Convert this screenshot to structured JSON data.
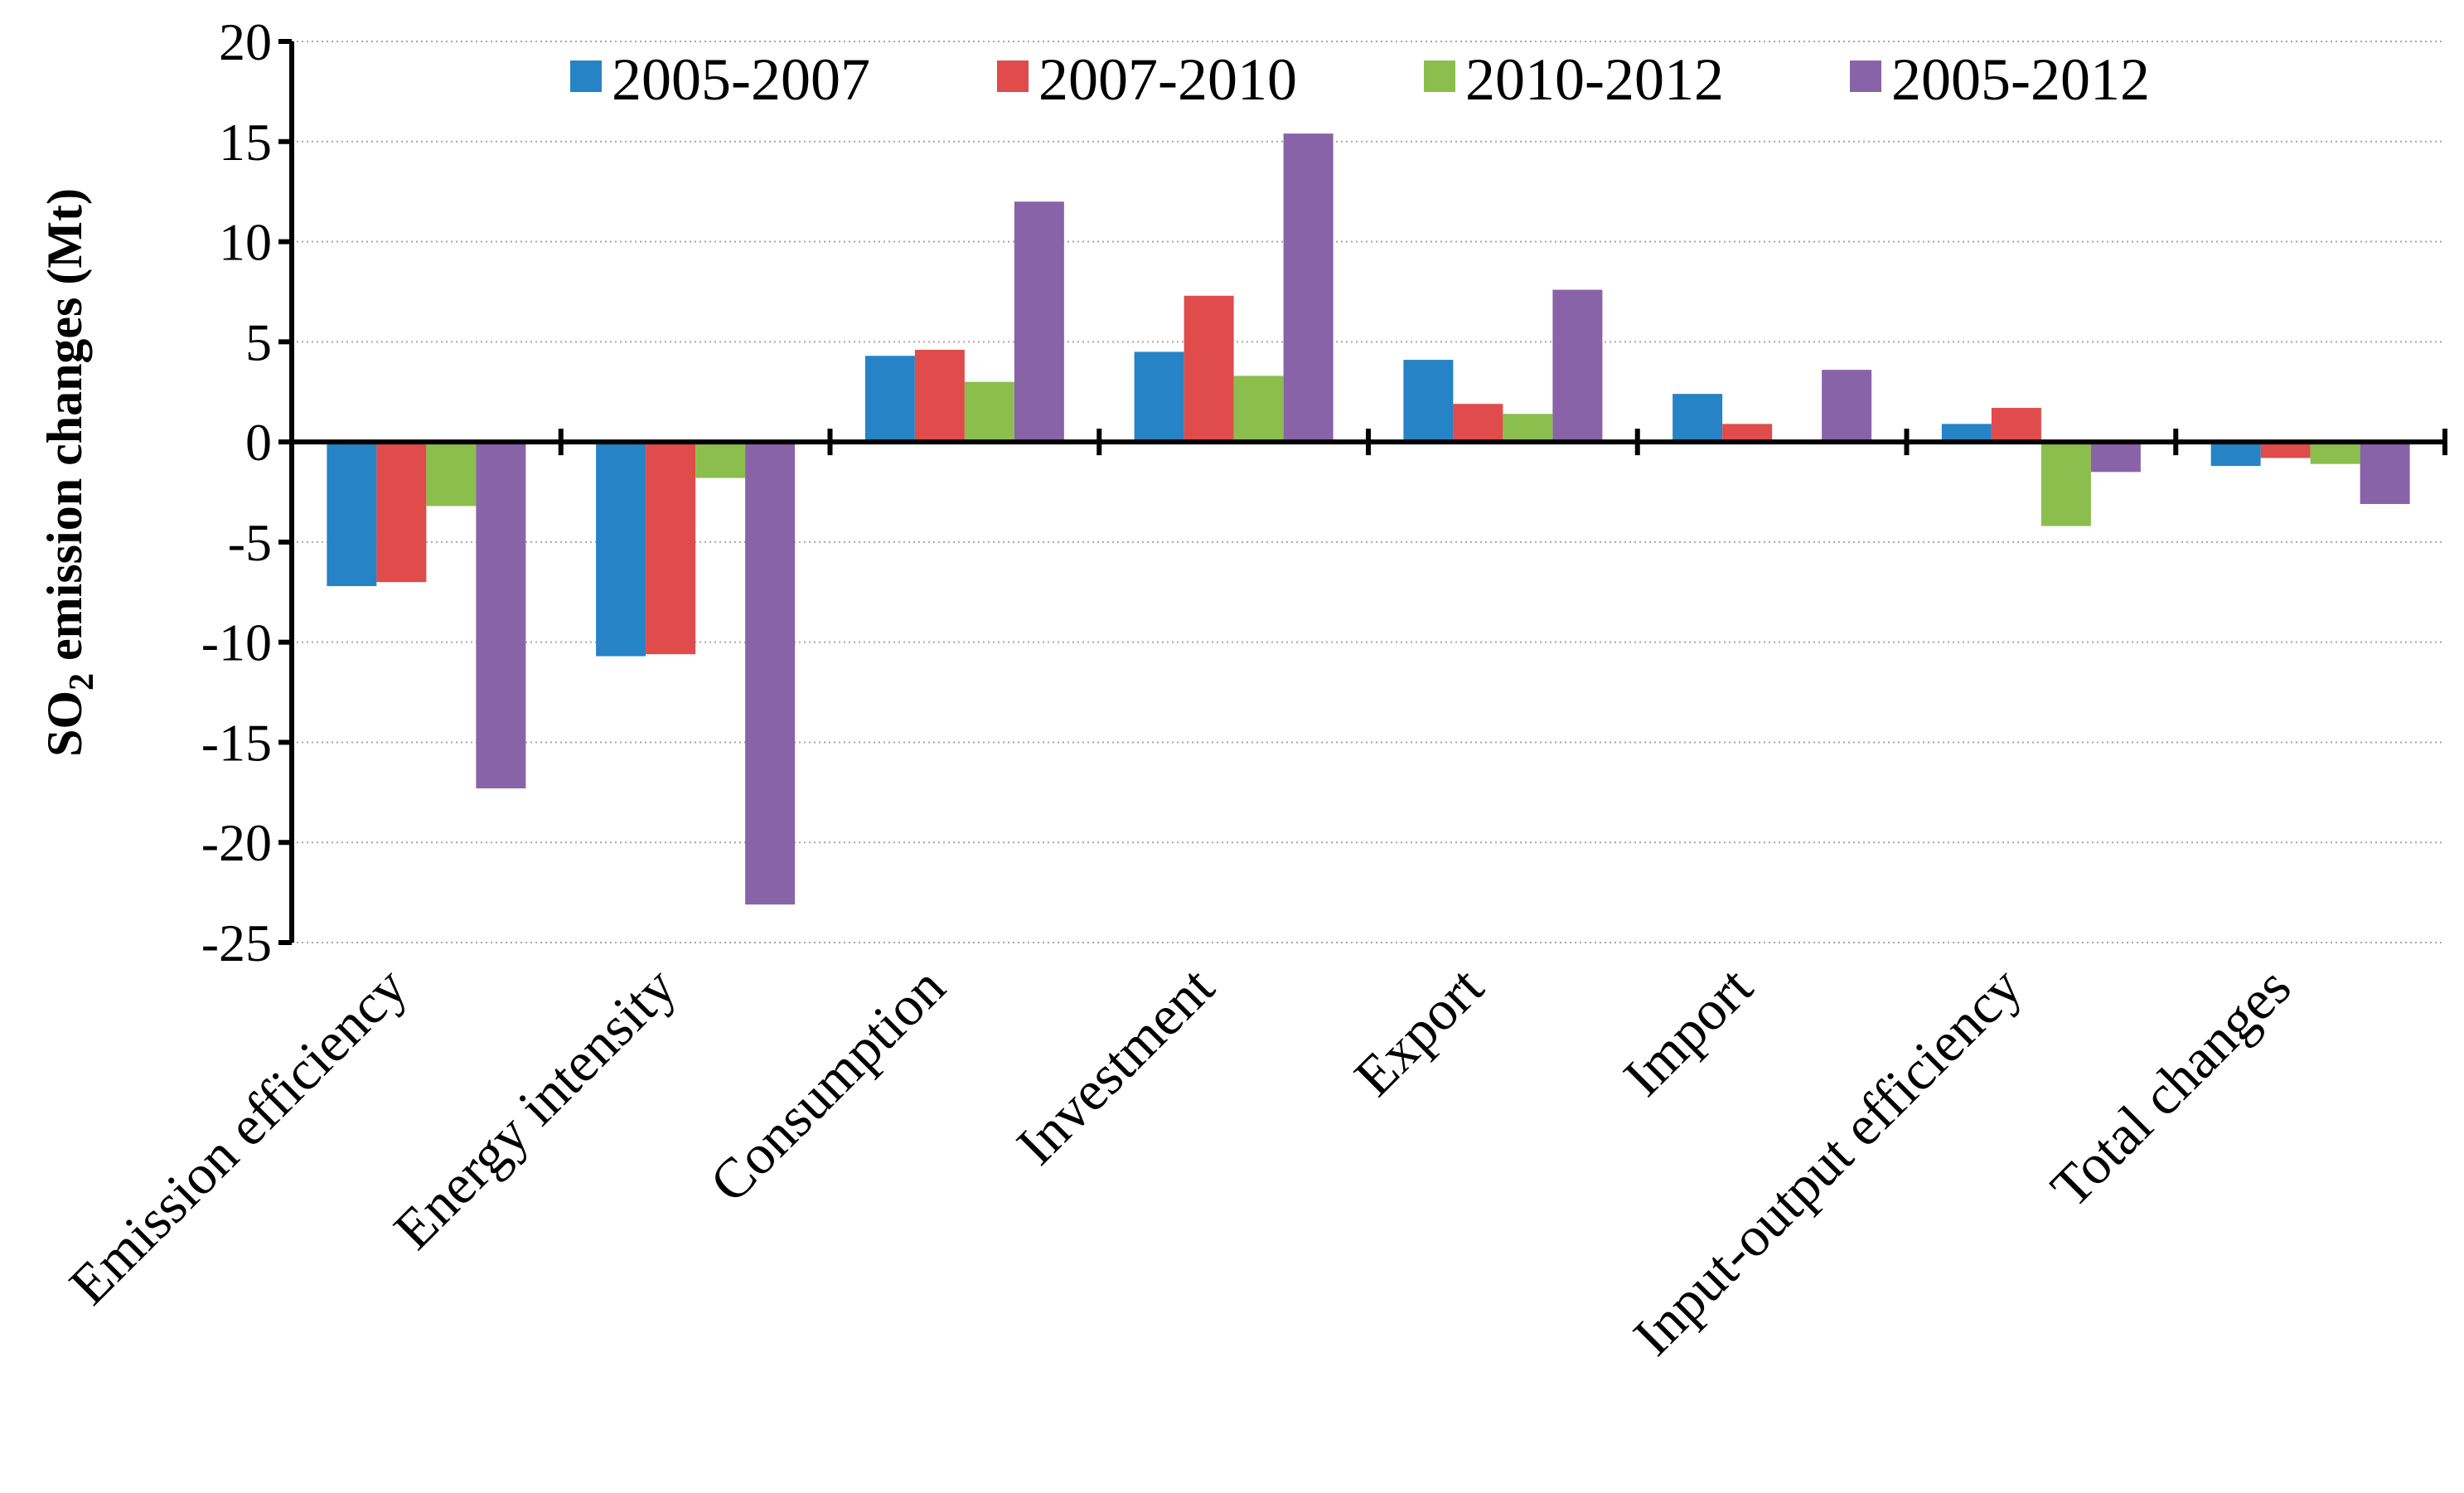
{
  "chart_data": {
    "type": "bar",
    "title": "",
    "xlabel": "",
    "ylabel": {
      "prefix": "SO",
      "subscript": "2",
      "suffix": " emission changes (Mt)"
    },
    "ylim": [
      -25,
      20
    ],
    "yticks": [
      20,
      15,
      10,
      5,
      0,
      -5,
      -10,
      -15,
      -20,
      -25
    ],
    "ytick_labels": [
      "20",
      "15",
      "10",
      "5",
      "0",
      "-5",
      "-10",
      "-15",
      "-20",
      "-25"
    ],
    "grid": "horizontal dotted",
    "legend_position": "top",
    "categories": [
      "Emission efficiency",
      "Energy intensity",
      "Consumption",
      "Investment",
      "Export",
      "Import",
      "Input-output efficiency",
      "Total changes"
    ],
    "series": [
      {
        "name": "2005-2007",
        "color": "#2683C6",
        "values": [
          -7.2,
          -10.7,
          4.3,
          4.5,
          4.1,
          2.4,
          0.9,
          -1.2
        ]
      },
      {
        "name": "2007-2010",
        "color": "#E04B4B",
        "values": [
          -7.0,
          -10.6,
          4.6,
          7.3,
          1.9,
          0.9,
          1.7,
          -0.8
        ]
      },
      {
        "name": "2010-2012",
        "color": "#8BBE4D",
        "values": [
          -3.2,
          -1.8,
          3.0,
          3.3,
          1.4,
          0.0,
          -4.2,
          -1.1
        ]
      },
      {
        "name": "2005-2012",
        "color": "#8963A8",
        "values": [
          -17.3,
          -23.1,
          12.0,
          15.4,
          7.6,
          3.6,
          -1.5,
          -3.1
        ]
      }
    ]
  }
}
